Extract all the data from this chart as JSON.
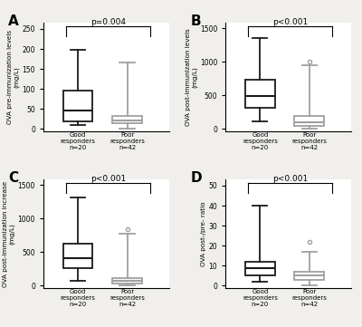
{
  "panels": [
    {
      "label": "A",
      "ylabel": "OVA pre-immunization levels\n(mg/L)",
      "pvalue": "p=0.004",
      "ylim": [
        -5,
        265
      ],
      "yticks": [
        0,
        50,
        100,
        150,
        200,
        250
      ],
      "good": {
        "whislo": 10,
        "q1": 20,
        "med": 47,
        "q3": 95,
        "whishi": 197,
        "fliers": []
      },
      "poor": {
        "whislo": 0,
        "q1": 15,
        "med": 22,
        "q3": 32,
        "whishi": 165,
        "fliers": []
      }
    },
    {
      "label": "B",
      "ylabel": "OVA post-immunization levels\n(mg/L)",
      "pvalue": "p<0.001",
      "ylim": [
        -30,
        1580
      ],
      "yticks": [
        0,
        500,
        1000,
        1500
      ],
      "good": {
        "whislo": 110,
        "q1": 320,
        "med": 490,
        "q3": 730,
        "whishi": 1350,
        "fliers": []
      },
      "poor": {
        "whislo": 0,
        "q1": 50,
        "med": 100,
        "q3": 200,
        "whishi": 950,
        "fliers": [
          1010
        ]
      }
    },
    {
      "label": "C",
      "ylabel": "OVA post-immunization increase\n(mg/L)",
      "pvalue": "p<0.001",
      "ylim": [
        -30,
        1580
      ],
      "yticks": [
        0,
        500,
        1000,
        1500
      ],
      "good": {
        "whislo": 80,
        "q1": 260,
        "med": 410,
        "q3": 630,
        "whishi": 1310,
        "fliers": []
      },
      "poor": {
        "whislo": 0,
        "q1": 30,
        "med": 70,
        "q3": 110,
        "whishi": 780,
        "fliers": [
          840
        ]
      }
    },
    {
      "label": "D",
      "ylabel": "OVA post-/pre- ratio",
      "pvalue": "p<0.001",
      "ylim": [
        -1,
        53
      ],
      "yticks": [
        0,
        10,
        20,
        30,
        40,
        50
      ],
      "good": {
        "whislo": 2,
        "q1": 5,
        "med": 9,
        "q3": 12,
        "whishi": 40,
        "fliers": []
      },
      "poor": {
        "whislo": 0,
        "q1": 3,
        "med": 5,
        "q3": 7,
        "whishi": 17,
        "fliers": [
          22
        ]
      }
    }
  ],
  "good_color": "#1a1a1a",
  "poor_color": "#a0a0a0",
  "good_label": "Good\nresponders\nn=20",
  "poor_label": "Poor\nresponders\nn=42",
  "bg_color": "#f0efeb"
}
